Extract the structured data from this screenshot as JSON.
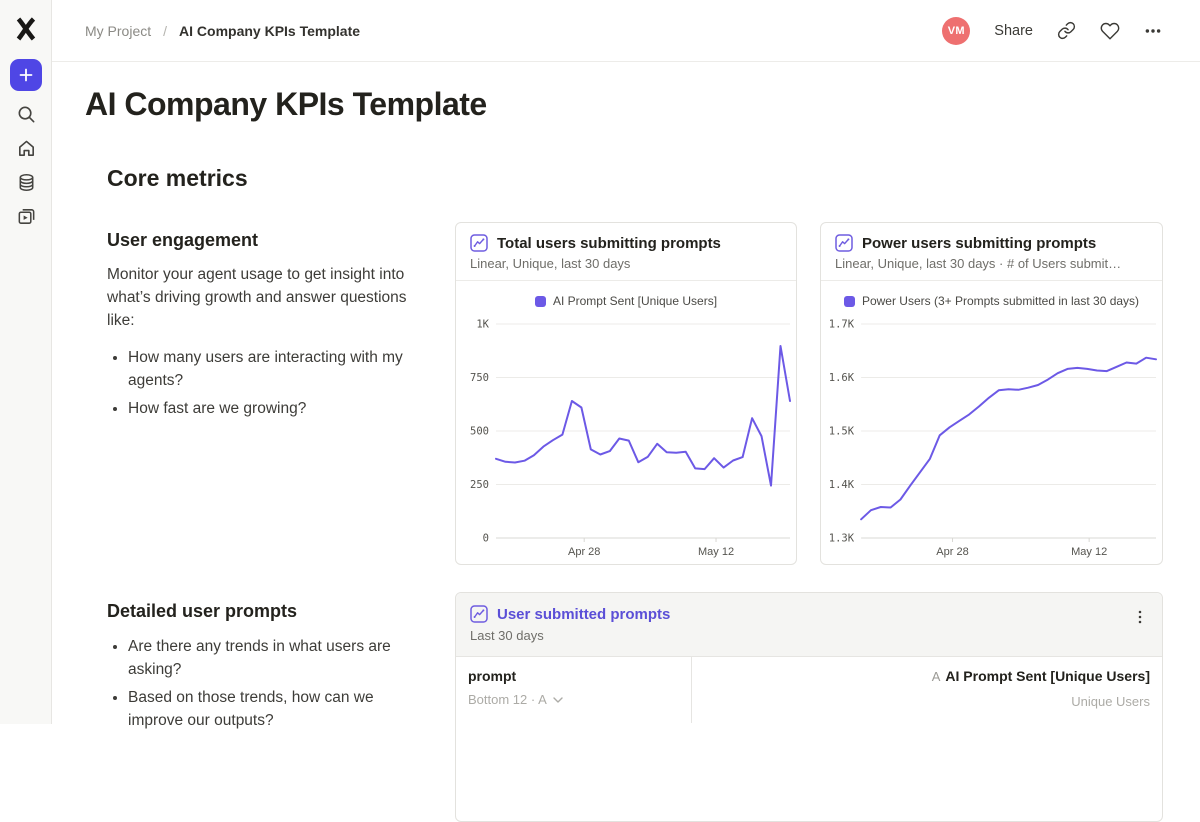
{
  "topbar": {
    "breadcrumb": {
      "project": "My Project",
      "separator": "/",
      "page": "AI Company KPIs Template"
    },
    "avatar_initials": "VM",
    "share_label": "Share"
  },
  "sidebar": {
    "icons": [
      "hex-logo",
      "plus-icon",
      "search-icon",
      "home-icon",
      "database-icon",
      "apps-icon"
    ]
  },
  "doc": {
    "title": "AI Company KPIs Template",
    "section_heading": "Core metrics",
    "user_engagement": {
      "heading": "User engagement",
      "paragraph": "Monitor your agent usage to get insight into what’s driving growth and answer questions like:",
      "bullets": [
        "How many users are interacting with my agents?",
        "How fast are we growing?"
      ]
    },
    "detailed_prompts": {
      "heading": "Detailed user prompts",
      "bullets": [
        "Are there any trends in what users are asking?",
        "Based on those trends, how can we improve our outputs?"
      ]
    }
  },
  "chart_data": [
    {
      "type": "line",
      "title": "Total users submitting prompts",
      "subtitle": "Linear, Unique, last 30 days",
      "legend": "AI Prompt Sent [Unique Users]",
      "line_color": "#6C59E6",
      "grid": true,
      "legend_position": "top-center",
      "xlabel": "",
      "ylabel": "",
      "ylim": [
        0,
        1000
      ],
      "yticks": [
        {
          "value": 0,
          "label": "0"
        },
        {
          "value": 250,
          "label": "250"
        },
        {
          "value": 500,
          "label": "500"
        },
        {
          "value": 750,
          "label": "750"
        },
        {
          "value": 1000,
          "label": "1K"
        }
      ],
      "xticks": [
        {
          "index": 9.3,
          "label": "Apr 28"
        },
        {
          "index": 23.2,
          "label": "May 12"
        }
      ],
      "values": [
        370,
        356,
        353,
        361,
        387,
        427,
        457,
        483,
        640,
        610,
        414,
        390,
        406,
        465,
        455,
        354,
        379,
        440,
        401,
        398,
        403,
        325,
        322,
        373,
        329,
        362,
        378,
        560,
        476,
        245,
        897,
        640
      ]
    },
    {
      "type": "line",
      "title": "Power users submitting prompts",
      "subtitle": "Linear, Unique, last 30 days · # of Users submit…",
      "legend": "Power Users (3+ Prompts submitted in last 30 days)",
      "line_color": "#6C59E6",
      "grid": true,
      "legend_position": "top-center",
      "xlabel": "",
      "ylabel": "",
      "ylim": [
        1300,
        1700
      ],
      "yticks": [
        {
          "value": 1300,
          "label": "1.3K"
        },
        {
          "value": 1400,
          "label": "1.4K"
        },
        {
          "value": 1500,
          "label": "1.5K"
        },
        {
          "value": 1600,
          "label": "1.6K"
        },
        {
          "value": 1700,
          "label": "1.7K"
        }
      ],
      "xticks": [
        {
          "index": 9.3,
          "label": "Apr 28"
        },
        {
          "index": 23.2,
          "label": "May 12"
        }
      ],
      "values": [
        1335,
        1352,
        1358,
        1357,
        1372,
        1398,
        1423,
        1448,
        1492,
        1507,
        1519,
        1531,
        1546,
        1562,
        1576,
        1578,
        1577,
        1581,
        1586,
        1596,
        1608,
        1616,
        1618,
        1616,
        1613,
        1612,
        1620,
        1628,
        1626,
        1637,
        1634
      ]
    }
  ],
  "prompts_card": {
    "title": "User submitted prompts",
    "subtitle": "Last 30 days",
    "table": {
      "left_header": "prompt",
      "left_sort": "Bottom 12 · A",
      "right_type": "A",
      "right_header": "AI Prompt Sent [Unique Users]",
      "right_sub": "Unique Users"
    }
  },
  "colors": {
    "accent_button": "#4F46E5",
    "line_purple": "#6C59E6",
    "card_link_purple": "#5B4FD7",
    "avatar_pink": "#EE7070"
  }
}
